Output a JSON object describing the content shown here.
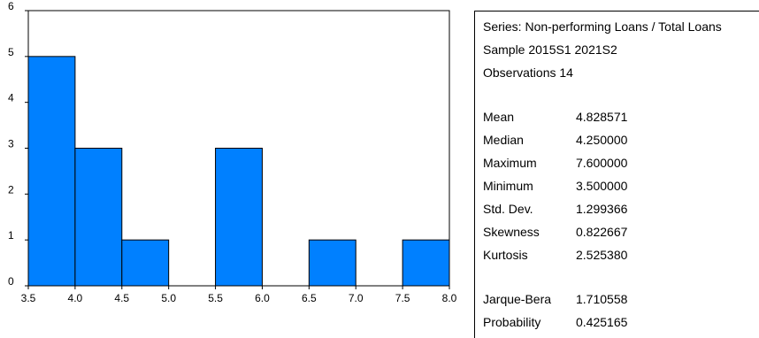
{
  "chart_data": {
    "type": "bar",
    "subtype": "histogram",
    "bins": [
      {
        "start": 3.5,
        "end": 4.0,
        "count": 5
      },
      {
        "start": 4.0,
        "end": 4.5,
        "count": 3
      },
      {
        "start": 4.5,
        "end": 5.0,
        "count": 1
      },
      {
        "start": 5.0,
        "end": 5.5,
        "count": 0
      },
      {
        "start": 5.5,
        "end": 6.0,
        "count": 3
      },
      {
        "start": 6.0,
        "end": 6.5,
        "count": 0
      },
      {
        "start": 6.5,
        "end": 7.0,
        "count": 1
      },
      {
        "start": 7.0,
        "end": 7.5,
        "count": 0
      },
      {
        "start": 7.5,
        "end": 8.0,
        "count": 1
      }
    ],
    "x_ticks": [
      "3.5",
      "4.0",
      "4.5",
      "5.0",
      "5.5",
      "6.0",
      "6.5",
      "7.0",
      "7.5",
      "8.0"
    ],
    "y_ticks": [
      "0",
      "1",
      "2",
      "3",
      "4",
      "5",
      "6"
    ],
    "xlim": [
      3.5,
      8.0
    ],
    "ylim": [
      0,
      6
    ],
    "bar_color": "#0080ff",
    "title": "",
    "xlabel": "",
    "ylabel": "",
    "grid": false,
    "legend": "none"
  },
  "stats": {
    "series_line": "Series: Non-performing Loans / Total Loans",
    "sample_line": "Sample 2015S1 2021S2",
    "observations_line": "Observations 14",
    "rows": [
      {
        "name": "Mean",
        "value": "4.828571"
      },
      {
        "name": "Median",
        "value": "4.250000"
      },
      {
        "name": "Maximum",
        "value": "7.600000"
      },
      {
        "name": "Minimum",
        "value": "3.500000"
      },
      {
        "name": "Std. Dev.",
        "value": "1.299366"
      },
      {
        "name": "Skewness",
        "value": "0.822667"
      },
      {
        "name": "Kurtosis",
        "value": "2.525380"
      }
    ],
    "test_rows": [
      {
        "name": "Jarque-Bera",
        "value": "1.710558"
      },
      {
        "name": "Probability",
        "value": "0.425165"
      }
    ]
  }
}
